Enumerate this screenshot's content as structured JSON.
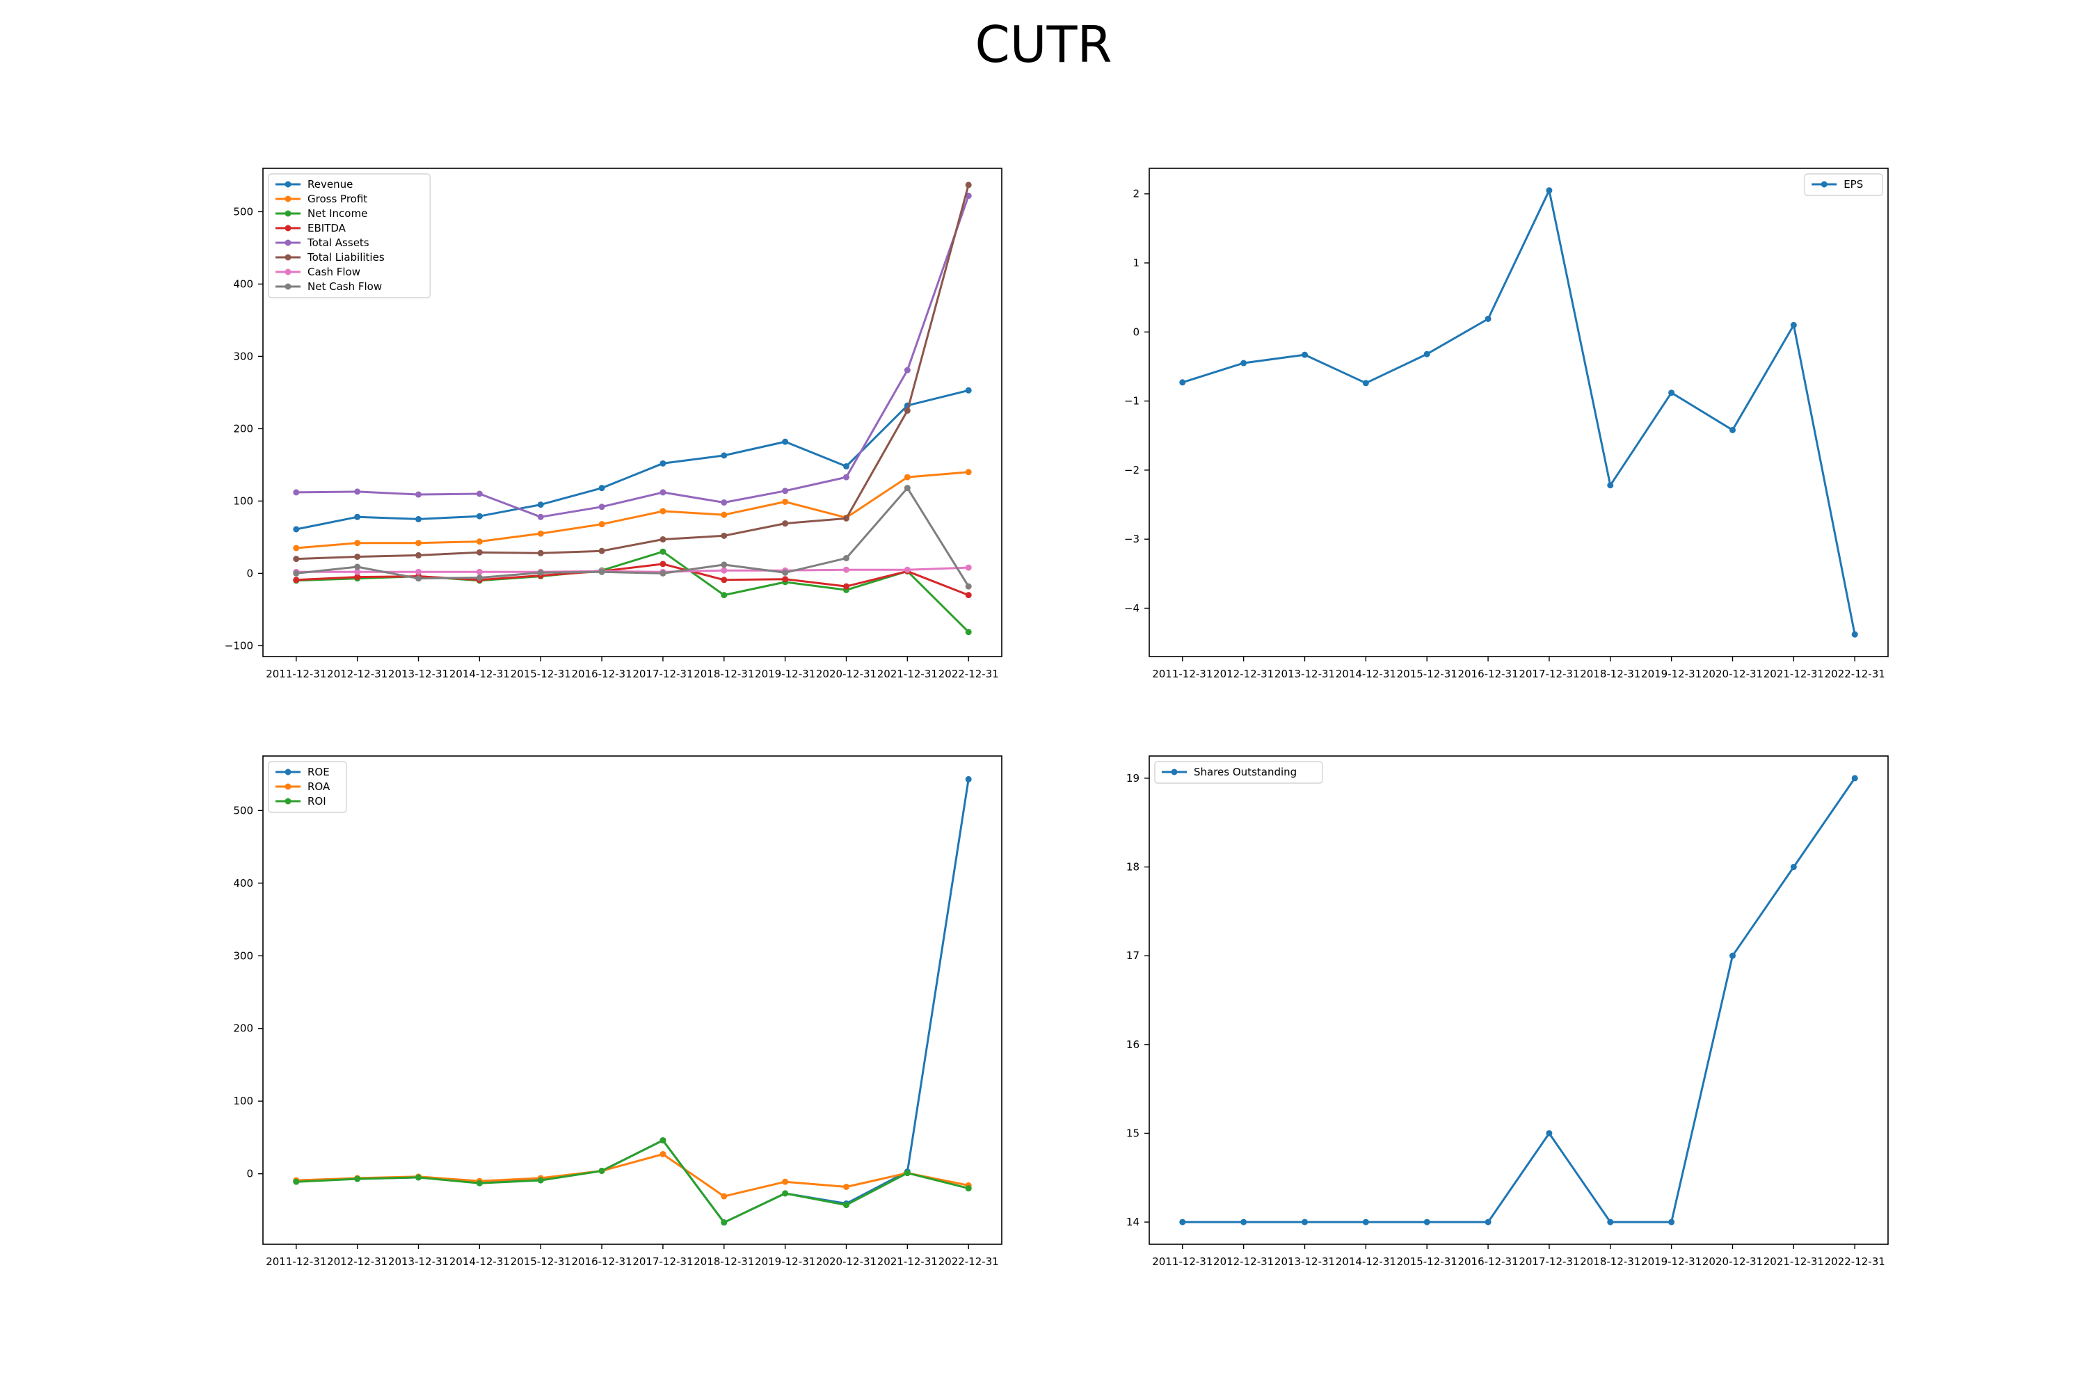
{
  "suptitle": "CUTR",
  "chart_data": [
    {
      "type": "line",
      "title": "",
      "xlabel": "",
      "ylabel": "",
      "categories": [
        "2011-12-31",
        "2012-12-31",
        "2013-12-31",
        "2014-12-31",
        "2015-12-31",
        "2016-12-31",
        "2017-12-31",
        "2018-12-31",
        "2019-12-31",
        "2020-12-31",
        "2021-12-31",
        "2022-12-31"
      ],
      "ylim": [
        -115,
        560
      ],
      "yticks": [
        -100,
        0,
        100,
        200,
        300,
        400,
        500
      ],
      "legend": "upper-left",
      "grid": false,
      "series": [
        {
          "name": "Revenue",
          "color": "#1f77b4",
          "values": [
            61,
            78,
            75,
            79,
            95,
            118,
            152,
            163,
            182,
            148,
            232,
            253
          ]
        },
        {
          "name": "Gross Profit",
          "color": "#ff7f0e",
          "values": [
            35,
            42,
            42,
            44,
            55,
            68,
            86,
            81,
            99,
            77,
            133,
            140
          ]
        },
        {
          "name": "Net Income",
          "color": "#2ca02c",
          "values": [
            -10,
            -7,
            -4,
            -10,
            -4,
            4,
            30,
            -30,
            -12,
            -23,
            3,
            -81
          ]
        },
        {
          "name": "EBITDA",
          "color": "#d62728",
          "values": [
            -9,
            -5,
            -4,
            -9,
            -3,
            3,
            13,
            -9,
            -8,
            -18,
            3,
            -30
          ]
        },
        {
          "name": "Total Assets",
          "color": "#9467bd",
          "values": [
            112,
            113,
            109,
            110,
            78,
            92,
            112,
            98,
            114,
            133,
            281,
            522
          ]
        },
        {
          "name": "Total Liabilities",
          "color": "#8c564b",
          "values": [
            20,
            23,
            25,
            29,
            28,
            31,
            47,
            52,
            69,
            76,
            225,
            537
          ]
        },
        {
          "name": "Cash Flow",
          "color": "#e377c2",
          "values": [
            2,
            2,
            2,
            2,
            2,
            3,
            2,
            4,
            4,
            5,
            5,
            8
          ]
        },
        {
          "name": "Net Cash Flow",
          "color": "#7f7f7f",
          "values": [
            0,
            9,
            -7,
            -6,
            1,
            2,
            0,
            12,
            1,
            21,
            118,
            -18
          ]
        }
      ]
    },
    {
      "type": "line",
      "title": "",
      "xlabel": "",
      "ylabel": "",
      "categories": [
        "2011-12-31",
        "2012-12-31",
        "2013-12-31",
        "2014-12-31",
        "2015-12-31",
        "2016-12-31",
        "2017-12-31",
        "2018-12-31",
        "2019-12-31",
        "2020-12-31",
        "2021-12-31",
        "2022-12-31"
      ],
      "ylim": [
        -4.7,
        2.37
      ],
      "yticks": [
        -4,
        -3,
        -2,
        -1,
        0,
        1,
        2
      ],
      "legend": "upper-right",
      "grid": false,
      "series": [
        {
          "name": "EPS",
          "color": "#1f77b4",
          "values": [
            -0.73,
            -0.45,
            -0.33,
            -0.74,
            -0.32,
            0.19,
            2.05,
            -2.22,
            -0.88,
            -1.42,
            0.1,
            -4.38
          ]
        }
      ]
    },
    {
      "type": "line",
      "title": "",
      "xlabel": "",
      "ylabel": "",
      "categories": [
        "2011-12-31",
        "2012-12-31",
        "2013-12-31",
        "2014-12-31",
        "2015-12-31",
        "2016-12-31",
        "2017-12-31",
        "2018-12-31",
        "2019-12-31",
        "2020-12-31",
        "2021-12-31",
        "2022-12-31"
      ],
      "ylim": [
        -97,
        575
      ],
      "yticks": [
        0,
        100,
        200,
        300,
        400,
        500
      ],
      "legend": "upper-left",
      "grid": false,
      "series": [
        {
          "name": "ROE",
          "color": "#1f77b4",
          "values": [
            -10,
            -7,
            -5,
            -12,
            -8,
            4,
            46,
            -67,
            -27,
            -41,
            3,
            543
          ]
        },
        {
          "name": "ROA",
          "color": "#ff7f0e",
          "values": [
            -9,
            -6,
            -4,
            -10,
            -6,
            4,
            27,
            -31,
            -11,
            -18,
            1,
            -16
          ]
        },
        {
          "name": "ROI",
          "color": "#2ca02c",
          "values": [
            -11,
            -7,
            -5,
            -13,
            -9,
            4,
            46,
            -67,
            -27,
            -43,
            1,
            -20
          ]
        }
      ]
    },
    {
      "type": "line",
      "title": "",
      "xlabel": "",
      "ylabel": "",
      "categories": [
        "2011-12-31",
        "2012-12-31",
        "2013-12-31",
        "2014-12-31",
        "2015-12-31",
        "2016-12-31",
        "2017-12-31",
        "2018-12-31",
        "2019-12-31",
        "2020-12-31",
        "2021-12-31",
        "2022-12-31"
      ],
      "ylim": [
        13.75,
        19.25
      ],
      "yticks": [
        14,
        15,
        16,
        17,
        18,
        19
      ],
      "legend": "upper-left",
      "grid": false,
      "series": [
        {
          "name": "Shares Outstanding",
          "color": "#1f77b4",
          "values": [
            14,
            14,
            14,
            14,
            14,
            14,
            15,
            14,
            14,
            17,
            18,
            19
          ]
        }
      ]
    }
  ]
}
